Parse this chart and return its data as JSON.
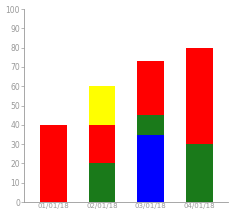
{
  "categories": [
    "01/01/18",
    "02/01/18",
    "03/01/18",
    "04/01/18"
  ],
  "segments": [
    {
      "label": "red",
      "values": [
        40,
        20,
        28,
        50
      ],
      "bottoms": [
        0,
        20,
        45,
        30
      ],
      "color": "#ff0000"
    },
    {
      "label": "green",
      "values": [
        0,
        20,
        10,
        30
      ],
      "bottoms": [
        0,
        0,
        35,
        0
      ],
      "color": "#1a7a1a"
    },
    {
      "label": "yellow",
      "values": [
        0,
        20,
        0,
        0
      ],
      "bottoms": [
        0,
        40,
        0,
        0
      ],
      "color": "#ffff00"
    },
    {
      "label": "blue",
      "values": [
        0,
        0,
        35,
        0
      ],
      "bottoms": [
        0,
        0,
        0,
        0
      ],
      "color": "#0000ff"
    }
  ],
  "ylim": [
    0,
    100
  ],
  "yticks": [
    0,
    10,
    20,
    30,
    40,
    50,
    60,
    70,
    80,
    90,
    100
  ],
  "bar_width": 0.55,
  "bg_color": "#ffffff",
  "tick_color": "#999999",
  "axis_color": "#999999",
  "tick_fontsize": 5.5,
  "xlabel_fontsize": 5
}
